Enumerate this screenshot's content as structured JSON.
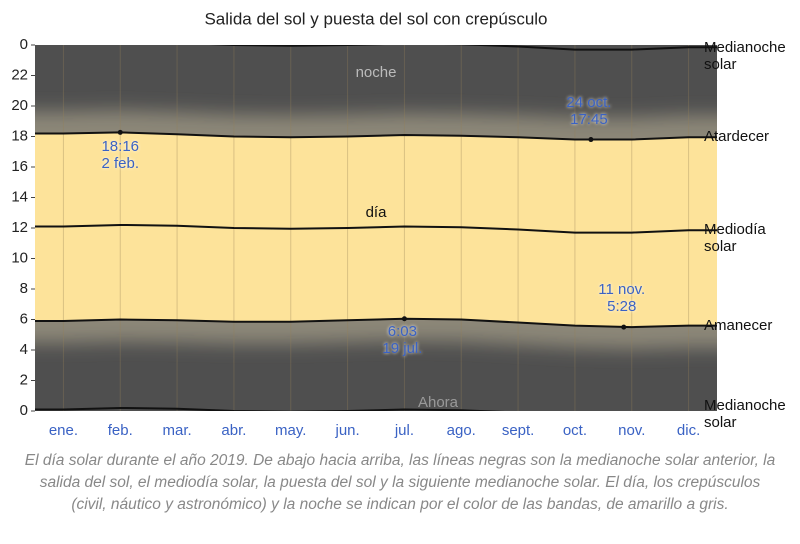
{
  "chart_data": {
    "type": "line",
    "title": "Salida del sol y puesta del sol con crepúsculo",
    "categories": [
      "ene.",
      "feb.",
      "mar.",
      "abr.",
      "may.",
      "jun.",
      "jul.",
      "ago.",
      "sept.",
      "oct.",
      "nov.",
      "dic."
    ],
    "series": [
      {
        "name": "Medianoche solar",
        "color": "#111111",
        "values": [
          0.1,
          0.2,
          0.15,
          0,
          -0.05,
          0,
          0.1,
          0.05,
          -0.1,
          -0.3,
          -0.3,
          -0.15
        ]
      },
      {
        "name": "Amanecer",
        "color": "#111111",
        "values": [
          5.9,
          6.0,
          5.95,
          5.85,
          5.85,
          5.95,
          6.05,
          6.0,
          5.8,
          5.6,
          5.5,
          5.6
        ]
      },
      {
        "name": "Mediodía solar",
        "color": "#111111",
        "values": [
          12.1,
          12.2,
          12.15,
          12.0,
          11.95,
          12.0,
          12.1,
          12.05,
          11.9,
          11.7,
          11.7,
          11.85
        ]
      },
      {
        "name": "Atardecer",
        "color": "#111111",
        "values": [
          18.2,
          18.27,
          18.15,
          18.0,
          17.95,
          18.0,
          18.1,
          18.05,
          17.95,
          17.8,
          17.8,
          17.95
        ]
      },
      {
        "name": "Medianoche solar",
        "color": "#111111",
        "values": [
          24.1,
          24.2,
          24.15,
          24,
          23.95,
          24,
          24.1,
          24.05,
          23.9,
          23.7,
          23.7,
          23.85
        ]
      }
    ],
    "ylim": [
      0,
      24
    ],
    "yticks": [
      0,
      2,
      4,
      6,
      8,
      10,
      12,
      14,
      16,
      18,
      20,
      22,
      {
        "value": 24,
        "label": "0"
      }
    ],
    "labels": {
      "night": "noche",
      "day": "día",
      "now": "Ahora"
    },
    "annotations": [
      {
        "lines": [
          "18:16",
          "2 feb."
        ]
      },
      {
        "lines": [
          "24 oct.",
          "17:45"
        ]
      },
      {
        "lines": [
          "6:03",
          "19 jul."
        ]
      },
      {
        "lines": [
          "11 nov.",
          "5:28"
        ]
      }
    ],
    "day_color": "#fde39a",
    "night_color": "#4f4f4f",
    "caption": "El día solar durante el año 2019. De abajo hacia arriba, las líneas negras son la medianoche solar anterior, la salida del sol, el mediodía solar, la puesta del sol y la siguiente medianoche solar. El día, los crepúsculos (civil, náutico y astronómico) y la noche se indican por el color de las bandas, de amarillo a gris."
  }
}
